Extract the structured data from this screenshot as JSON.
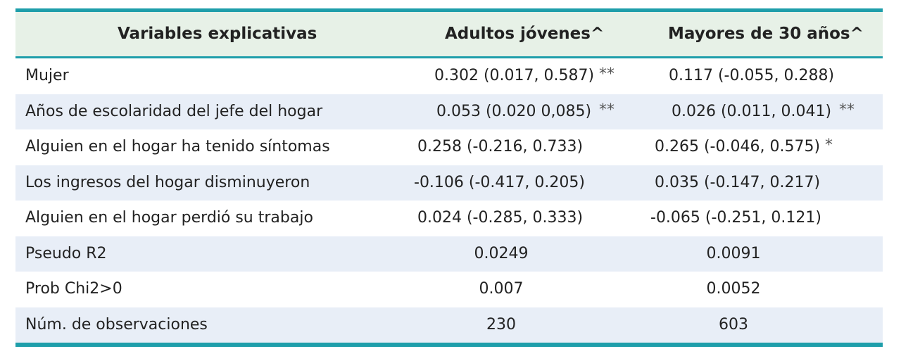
{
  "table": {
    "headers": {
      "variables": "Variables explicativas",
      "adults": "Adultos jóvenes^",
      "older": "Mayores de 30 años^"
    },
    "rows": [
      {
        "label": "Mujer",
        "adults": "0.302 (0.017, 0.587)",
        "adults_sig": "**",
        "older": "0.117 (-0.055, 0.288)",
        "older_sig": ""
      },
      {
        "label": "Años de escolaridad del jefe del hogar",
        "adults": "0.053 (0.020 0,085)",
        "adults_sig": "**",
        "older": "0.026 (0.011, 0.041)",
        "older_sig": "**"
      },
      {
        "label": "Alguien en el hogar ha tenido síntomas",
        "adults": "0.258 (-0.216, 0.733)",
        "adults_sig": "",
        "older": "0.265 (-0.046, 0.575)",
        "older_sig": "*"
      },
      {
        "label": "Los ingresos del hogar disminuyeron",
        "adults": "-0.106 (-0.417, 0.205)",
        "adults_sig": "",
        "older": "0.035 (-0.147, 0.217)",
        "older_sig": ""
      },
      {
        "label": "Alguien en el hogar perdió su trabajo",
        "adults": "0.024 (-0.285, 0.333)",
        "adults_sig": "",
        "older": "-0.065 (-0.251, 0.121)",
        "older_sig": ""
      },
      {
        "label": "Pseudo R2",
        "adults": "0.0249",
        "older": "0.0091"
      },
      {
        "label": "Prob Chi2>0",
        "adults": "0.007",
        "older": "0.0052"
      },
      {
        "label": "Núm. de observaciones",
        "adults": "230",
        "older": "603"
      }
    ]
  },
  "colors": {
    "rule": "#1e9eaa",
    "header_bg": "#e7f1e7",
    "alt_row_bg": "#e8eef7",
    "text": "#222222"
  }
}
